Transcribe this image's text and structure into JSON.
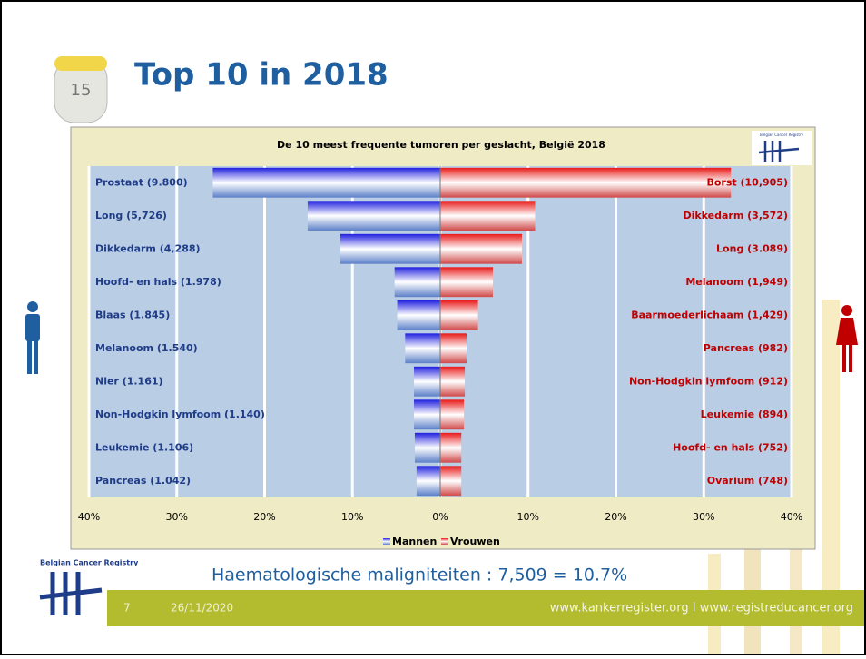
{
  "slide": {
    "title": "Top 10 in 2018",
    "milestone": "15",
    "footer_logo": "Belgian Cancer Registry",
    "note": "Haematologische maligniteiten : 7,509 = 10.7%",
    "page_number": "7",
    "date": "26/11/2020",
    "website": "www.kankerregister.org I www.registreducancer.org"
  },
  "chart_data": {
    "type": "butterfly",
    "title": "De 10 meest frequente tumoren per geslacht, België 2018",
    "logo": "Belgian Cancer Registry",
    "xlim": [
      -40,
      40
    ],
    "xticks": [
      {
        "value": -40,
        "label": "40%"
      },
      {
        "value": -30,
        "label": "30%"
      },
      {
        "value": -20,
        "label": "20%"
      },
      {
        "value": -10,
        "label": "10%"
      },
      {
        "value": 0,
        "label": "0%"
      },
      {
        "value": 10,
        "label": "10%"
      },
      {
        "value": 20,
        "label": "20%"
      },
      {
        "value": 30,
        "label": "30%"
      },
      {
        "value": 40,
        "label": "40%"
      }
    ],
    "grid": true,
    "series": [
      {
        "name": "Mannen",
        "color": "#1f1fe0",
        "label_color": "#1f3c88",
        "labels": [
          "Prostaat (9.800)",
          "Long (5,726)",
          "Dikkedarm (4,288)",
          "Hoofd- en hals (1.978)",
          "Blaas (1.845)",
          "Melanoom (1.540)",
          "Nier (1.161)",
          "Non-Hodgkin lymfoom (1.140)",
          "Leukemie (1.106)",
          "Pancreas (1.042)"
        ],
        "values": [
          -25.9,
          -15.1,
          -11.4,
          -5.2,
          -4.9,
          -4.0,
          -3.0,
          -3.0,
          -2.9,
          -2.7
        ]
      },
      {
        "name": "Vrouwen",
        "color": "#e81818",
        "label_color": "#c00000",
        "labels": [
          "Borst (10,905)",
          "Dikkedarm (3,572)",
          "Long (3.089)",
          "Melanoom  (1,949)",
          "Baarmoederlichaam (1,429)",
          "Pancreas (982)",
          "Non-Hodgkin lymfoom (912)",
          "Leukemie (894)",
          "Hoofd- en hals (752)",
          "Ovarium (748)"
        ],
        "values": [
          33.1,
          10.8,
          9.3,
          6.0,
          4.3,
          3.0,
          2.8,
          2.7,
          2.4,
          2.4
        ]
      }
    ]
  }
}
